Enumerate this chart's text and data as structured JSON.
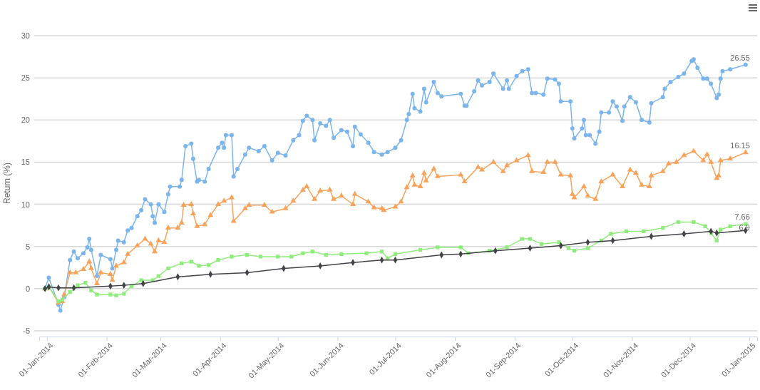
{
  "chart_data": {
    "type": "line",
    "ylabel": "Return (%)",
    "grid": "y",
    "xlim": [
      "2013-12-28",
      "2015-01-05"
    ],
    "xticks": [
      {
        "value": "2014-01-01",
        "label": "01-Jan-2014"
      },
      {
        "value": "2014-02-01",
        "label": "01-Feb-2014"
      },
      {
        "value": "2014-03-01",
        "label": "01-Mar-2014"
      },
      {
        "value": "2014-04-01",
        "label": "01-Apr-2014"
      },
      {
        "value": "2014-05-01",
        "label": "01-May-2014"
      },
      {
        "value": "2014-06-01",
        "label": "01-Jun-2014"
      },
      {
        "value": "2014-07-01",
        "label": "01-Jul-2014"
      },
      {
        "value": "2014-08-01",
        "label": "01-Aug-2014"
      },
      {
        "value": "2014-09-01",
        "label": "01-Sep-2014"
      },
      {
        "value": "2014-10-01",
        "label": "01-Oct-2014"
      },
      {
        "value": "2014-11-01",
        "label": "01-Nov-2014"
      },
      {
        "value": "2014-12-01",
        "label": "01-Dec-2014"
      },
      {
        "value": "2015-01-01",
        "label": "01-Jan-2015"
      }
    ],
    "ylim": [
      -5,
      30
    ],
    "yticks": [
      -5,
      0,
      5,
      10,
      15,
      20,
      25,
      30
    ],
    "series": [
      {
        "color": "#7cb5ec",
        "marker": "circle",
        "x": [
          "2013-12-31",
          "2014-01-02",
          "2014-01-07",
          "2014-01-08",
          "2014-01-10",
          "2014-01-13",
          "2014-01-15",
          "2014-01-17",
          "2014-01-20",
          "2014-01-22",
          "2014-01-23",
          "2014-01-24",
          "2014-01-27",
          "2014-01-29",
          "2014-02-03",
          "2014-02-04",
          "2014-02-06",
          "2014-02-07",
          "2014-02-10",
          "2014-02-12",
          "2014-02-14",
          "2014-02-17",
          "2014-02-19",
          "2014-02-21",
          "2014-02-24",
          "2014-02-25",
          "2014-02-26",
          "2014-02-28",
          "2014-03-03",
          "2014-03-05",
          "2014-03-06",
          "2014-03-11",
          "2014-03-12",
          "2014-03-14",
          "2014-03-17",
          "2014-03-18",
          "2014-03-20",
          "2014-03-21",
          "2014-03-24",
          "2014-03-26",
          "2014-03-31",
          "2014-04-02",
          "2014-04-03",
          "2014-04-04",
          "2014-04-07",
          "2014-04-08",
          "2014-04-10",
          "2014-04-14",
          "2014-04-16",
          "2014-04-21",
          "2014-04-24",
          "2014-04-28",
          "2014-05-01",
          "2014-05-05",
          "2014-05-09",
          "2014-05-12",
          "2014-05-14",
          "2014-05-16",
          "2014-05-19",
          "2014-05-20",
          "2014-05-23",
          "2014-05-26",
          "2014-05-28",
          "2014-05-30",
          "2014-06-03",
          "2014-06-06",
          "2014-06-09",
          "2014-06-10",
          "2014-06-13",
          "2014-06-17",
          "2014-06-20",
          "2014-06-24",
          "2014-06-27",
          "2014-07-01",
          "2014-07-04",
          "2014-07-07",
          "2014-07-08",
          "2014-07-10",
          "2014-07-11",
          "2014-07-14",
          "2014-07-16",
          "2014-07-17",
          "2014-07-21",
          "2014-07-23",
          "2014-07-25",
          "2014-08-04",
          "2014-08-06",
          "2014-08-07",
          "2014-08-11",
          "2014-08-13",
          "2014-08-15",
          "2014-08-19",
          "2014-08-21",
          "2014-08-26",
          "2014-08-28",
          "2014-08-29",
          "2014-09-02",
          "2014-09-05",
          "2014-09-08",
          "2014-09-10",
          "2014-09-12",
          "2014-09-16",
          "2014-09-18",
          "2014-09-22",
          "2014-09-24",
          "2014-09-25",
          "2014-09-30",
          "2014-10-01",
          "2014-10-02",
          "2014-10-06",
          "2014-10-07",
          "2014-10-08",
          "2014-10-10",
          "2014-10-13",
          "2014-10-15",
          "2014-10-16",
          "2014-10-20",
          "2014-10-22",
          "2014-10-24",
          "2014-10-27",
          "2014-10-28",
          "2014-10-31",
          "2014-11-03",
          "2014-11-06",
          "2014-11-10",
          "2014-11-11",
          "2014-11-17",
          "2014-11-18",
          "2014-11-21",
          "2014-11-25",
          "2014-11-28",
          "2014-12-02",
          "2014-12-03",
          "2014-12-05",
          "2014-12-08",
          "2014-12-10",
          "2014-12-12",
          "2014-12-15",
          "2014-12-16",
          "2014-12-17",
          "2014-12-18",
          "2014-12-22",
          "2014-12-30"
        ],
        "values": [
          0,
          1.3,
          -1.9,
          -2.6,
          -1.0,
          3.4,
          4.4,
          3.6,
          4.2,
          4.9,
          5.9,
          4.6,
          1.5,
          4.0,
          3.5,
          2.4,
          4.6,
          5.7,
          5.5,
          6.9,
          7.2,
          8.6,
          9.3,
          10.6,
          10.0,
          8.6,
          7.8,
          10.0,
          9.1,
          11.2,
          12.1,
          12.1,
          12.9,
          16.9,
          17.2,
          15.4,
          12.7,
          12.9,
          12.7,
          14.2,
          16.7,
          17.3,
          16.7,
          18.2,
          18.2,
          13.3,
          14.2,
          15.9,
          16.7,
          16.3,
          16.9,
          15.2,
          16.1,
          15.8,
          17.6,
          18.2,
          19.9,
          20.5,
          20.0,
          17.6,
          19.6,
          19.3,
          20.0,
          17.9,
          18.8,
          18.6,
          16.9,
          19.2,
          18.3,
          17.3,
          16.2,
          15.9,
          16.2,
          16.7,
          17.6,
          20.0,
          20.7,
          23.1,
          21.4,
          21.0,
          23.7,
          22.1,
          24.5,
          23.2,
          22.8,
          23.1,
          21.7,
          21.7,
          23.4,
          24.7,
          24.1,
          24.5,
          25.5,
          23.7,
          24.7,
          23.7,
          25.2,
          25.8,
          26.0,
          23.2,
          23.2,
          23.0,
          24.9,
          24.8,
          24.3,
          22.2,
          22.2,
          19.0,
          17.8,
          19.0,
          20.0,
          18.2,
          18.2,
          17.2,
          18.6,
          20.9,
          20.9,
          22.2,
          21.6,
          19.9,
          21.6,
          22.7,
          22.1,
          20.0,
          19.7,
          22.0,
          22.7,
          23.7,
          24.5,
          25.1,
          25.5,
          27.0,
          27.2,
          26.2,
          24.9,
          24.9,
          24.3,
          22.6,
          23.0,
          24.9,
          25.8,
          26.0,
          26.55
        ]
      },
      {
        "color": "#f7a35c",
        "marker": "triangle",
        "x": [
          "2013-12-31",
          "2014-01-02",
          "2014-01-07",
          "2014-01-09",
          "2014-01-10",
          "2014-01-13",
          "2014-01-16",
          "2014-01-20",
          "2014-01-23",
          "2014-01-24",
          "2014-01-27",
          "2014-01-29",
          "2014-02-03",
          "2014-02-04",
          "2014-02-06",
          "2014-02-10",
          "2014-02-12",
          "2014-02-17",
          "2014-02-21",
          "2014-02-24",
          "2014-02-26",
          "2014-02-28",
          "2014-03-03",
          "2014-03-05",
          "2014-03-10",
          "2014-03-12",
          "2014-03-13",
          "2014-03-17",
          "2014-03-18",
          "2014-03-20",
          "2014-03-24",
          "2014-03-27",
          "2014-03-31",
          "2014-04-03",
          "2014-04-07",
          "2014-04-08",
          "2014-04-14",
          "2014-04-16",
          "2014-04-24",
          "2014-04-28",
          "2014-05-05",
          "2014-05-09",
          "2014-05-14",
          "2014-05-16",
          "2014-05-20",
          "2014-05-23",
          "2014-05-28",
          "2014-05-30",
          "2014-06-03",
          "2014-06-09",
          "2014-06-10",
          "2014-06-17",
          "2014-06-20",
          "2014-06-24",
          "2014-06-25",
          "2014-07-01",
          "2014-07-04",
          "2014-07-07",
          "2014-07-10",
          "2014-07-11",
          "2014-07-14",
          "2014-07-16",
          "2014-07-17",
          "2014-07-21",
          "2014-07-23",
          "2014-08-04",
          "2014-08-06",
          "2014-08-13",
          "2014-08-15",
          "2014-08-21",
          "2014-08-26",
          "2014-08-28",
          "2014-09-02",
          "2014-09-08",
          "2014-09-10",
          "2014-09-16",
          "2014-09-18",
          "2014-09-22",
          "2014-09-25",
          "2014-09-30",
          "2014-10-01",
          "2014-10-02",
          "2014-10-07",
          "2014-10-09",
          "2014-10-13",
          "2014-10-16",
          "2014-10-22",
          "2014-10-27",
          "2014-10-31",
          "2014-11-03",
          "2014-11-06",
          "2014-11-10",
          "2014-11-11",
          "2014-11-17",
          "2014-11-20",
          "2014-11-24",
          "2014-11-28",
          "2014-12-03",
          "2014-12-08",
          "2014-12-10",
          "2014-12-12",
          "2014-12-15",
          "2014-12-16",
          "2014-12-17",
          "2014-12-22",
          "2014-12-30"
        ],
        "values": [
          0,
          0.3,
          -1.7,
          -1.5,
          -0.7,
          1.9,
          1.9,
          2.3,
          3.2,
          2.4,
          0.6,
          1.9,
          1.7,
          1.0,
          2.7,
          3.1,
          4.1,
          5.1,
          5.9,
          5.3,
          4.4,
          5.7,
          5.5,
          7.2,
          7.2,
          7.8,
          9.9,
          10.0,
          8.9,
          7.4,
          7.6,
          8.7,
          10.0,
          10.4,
          10.8,
          8.0,
          9.5,
          9.9,
          9.9,
          9.1,
          9.5,
          10.4,
          11.7,
          12.1,
          10.6,
          11.6,
          11.7,
          10.6,
          11.0,
          10.0,
          11.2,
          10.3,
          9.6,
          9.5,
          9.3,
          9.7,
          10.3,
          12.0,
          13.4,
          12.3,
          12.1,
          13.7,
          12.8,
          14.2,
          13.3,
          13.5,
          12.7,
          14.4,
          14.1,
          15.0,
          13.9,
          14.6,
          15.2,
          15.8,
          13.9,
          13.8,
          15.0,
          15.0,
          13.5,
          13.4,
          11.2,
          10.8,
          12.1,
          11.0,
          10.6,
          12.7,
          13.5,
          12.1,
          14.1,
          13.7,
          12.3,
          12.1,
          13.4,
          13.9,
          14.8,
          15.0,
          15.8,
          16.3,
          15.2,
          15.9,
          15.0,
          13.1,
          13.4,
          15.2,
          15.4,
          16.15
        ]
      },
      {
        "color": "#90ed7d",
        "marker": "square",
        "x": [
          "2013-12-31",
          "2014-01-02",
          "2014-01-07",
          "2014-01-09",
          "2014-01-13",
          "2014-01-17",
          "2014-01-21",
          "2014-01-24",
          "2014-01-27",
          "2014-02-03",
          "2014-02-06",
          "2014-02-10",
          "2014-02-14",
          "2014-02-19",
          "2014-02-25",
          "2014-02-28",
          "2014-03-05",
          "2014-03-12",
          "2014-03-17",
          "2014-03-21",
          "2014-03-26",
          "2014-03-31",
          "2014-04-07",
          "2014-04-15",
          "2014-04-22",
          "2014-05-01",
          "2014-05-08",
          "2014-05-14",
          "2014-05-19",
          "2014-05-26",
          "2014-06-03",
          "2014-06-16",
          "2014-06-24",
          "2014-06-27",
          "2014-07-01",
          "2014-07-14",
          "2014-07-23",
          "2014-08-04",
          "2014-08-08",
          "2014-08-19",
          "2014-08-28",
          "2014-09-05",
          "2014-09-09",
          "2014-09-15",
          "2014-09-24",
          "2014-09-29",
          "2014-10-02",
          "2014-10-09",
          "2014-10-16",
          "2014-10-21",
          "2014-10-29",
          "2014-11-07",
          "2014-11-17",
          "2014-11-25",
          "2014-12-03",
          "2014-12-09",
          "2014-12-12",
          "2014-12-15",
          "2014-12-17",
          "2014-12-22",
          "2014-12-30"
        ],
        "values": [
          0,
          0.2,
          -1.5,
          -1.3,
          -0.4,
          0.4,
          0.7,
          -0.2,
          -0.7,
          -0.7,
          -0.8,
          -0.6,
          0.3,
          1.0,
          1.0,
          1.5,
          2.4,
          3.0,
          3.2,
          2.7,
          2.8,
          3.4,
          3.8,
          4.0,
          3.8,
          3.8,
          3.8,
          4.2,
          4.4,
          4.0,
          4.1,
          4.2,
          4.4,
          3.6,
          4.1,
          4.6,
          4.9,
          4.9,
          4.2,
          4.5,
          4.9,
          5.9,
          5.9,
          5.3,
          5.5,
          4.8,
          4.5,
          4.8,
          5.7,
          6.5,
          6.8,
          6.8,
          7.2,
          7.9,
          7.9,
          7.4,
          6.6,
          5.7,
          7.0,
          7.4,
          7.66
        ]
      },
      {
        "color": "#434348",
        "marker": "diamond",
        "x": [
          "2013-12-31",
          "2014-01-02",
          "2014-01-07",
          "2014-01-15",
          "2014-02-03",
          "2014-02-10",
          "2014-02-20",
          "2014-03-10",
          "2014-03-27",
          "2014-04-15",
          "2014-05-04",
          "2014-05-23",
          "2014-06-09",
          "2014-06-24",
          "2014-07-01",
          "2014-07-25",
          "2014-08-04",
          "2014-08-22",
          "2014-09-09",
          "2014-09-25",
          "2014-10-09",
          "2014-10-22",
          "2014-11-11",
          "2014-11-28",
          "2014-12-12",
          "2014-12-15",
          "2014-12-30"
        ],
        "values": [
          0,
          0.2,
          0.1,
          0.1,
          0.3,
          0.4,
          0.6,
          1.4,
          1.7,
          1.9,
          2.4,
          2.7,
          3.1,
          3.4,
          3.4,
          4.0,
          4.1,
          4.5,
          4.8,
          5.1,
          5.5,
          5.7,
          6.2,
          6.5,
          6.8,
          6.6,
          6.9
        ]
      }
    ],
    "annotations": [
      {
        "text": "26.55",
        "x": "2014-12-30",
        "y": 26.55
      },
      {
        "text": "16.15",
        "x": "2014-12-30",
        "y": 16.15
      },
      {
        "text": "7.66",
        "x": "2014-12-30",
        "y": 7.66
      },
      {
        "text": "6.9",
        "x": "2014-12-30",
        "y": 6.9
      }
    ]
  }
}
